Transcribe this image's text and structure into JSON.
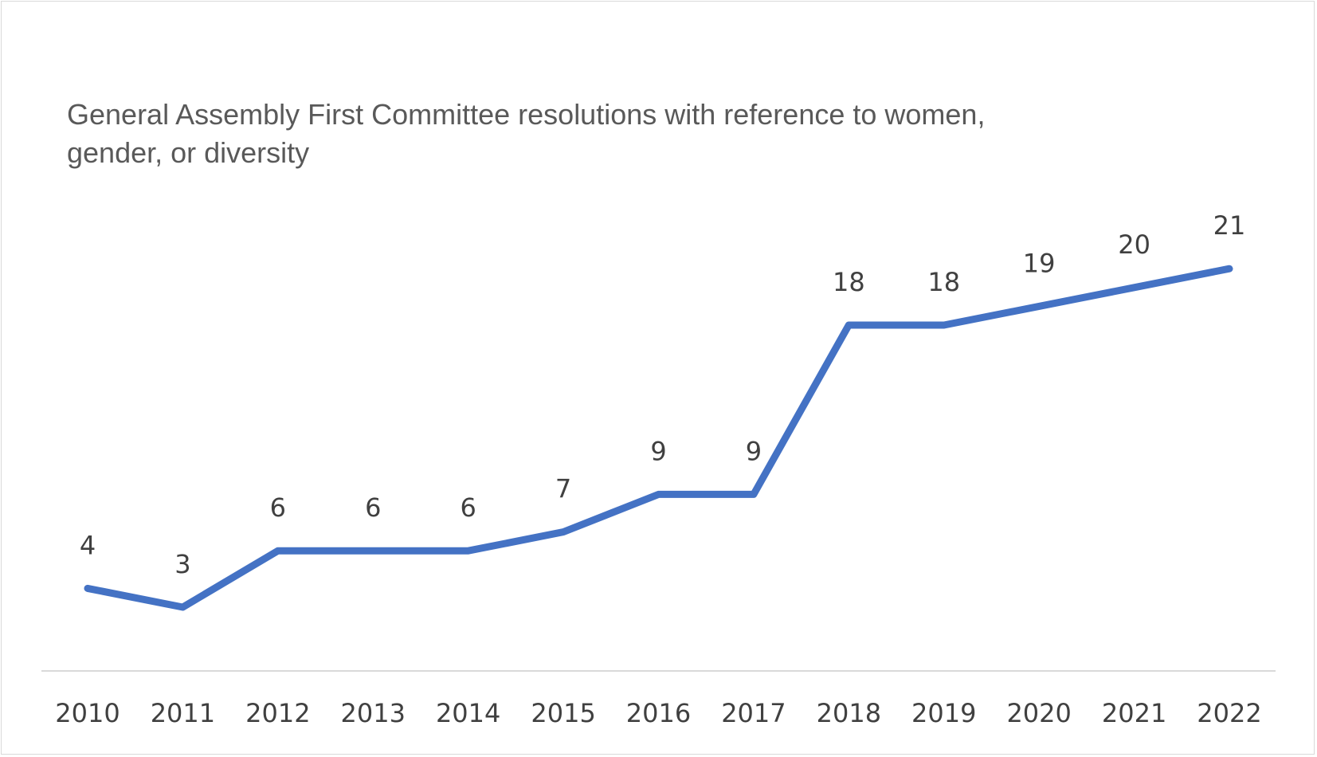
{
  "chart_data": {
    "type": "line",
    "title": "General Assembly First Committee resolutions with reference to women, gender, or diversity",
    "xlabel": "",
    "ylabel": "",
    "categories": [
      "2010",
      "2011",
      "2012",
      "2013",
      "2014",
      "2015",
      "2016",
      "2017",
      "2018",
      "2019",
      "2020",
      "2021",
      "2022"
    ],
    "series": [
      {
        "values": [
          4,
          3,
          6,
          6,
          6,
          7,
          9,
          9,
          18,
          18,
          19,
          20,
          21
        ],
        "color": "#4472c4"
      }
    ],
    "data_labels": true,
    "grid": false,
    "legend": "none",
    "y_axis_visible": false
  }
}
